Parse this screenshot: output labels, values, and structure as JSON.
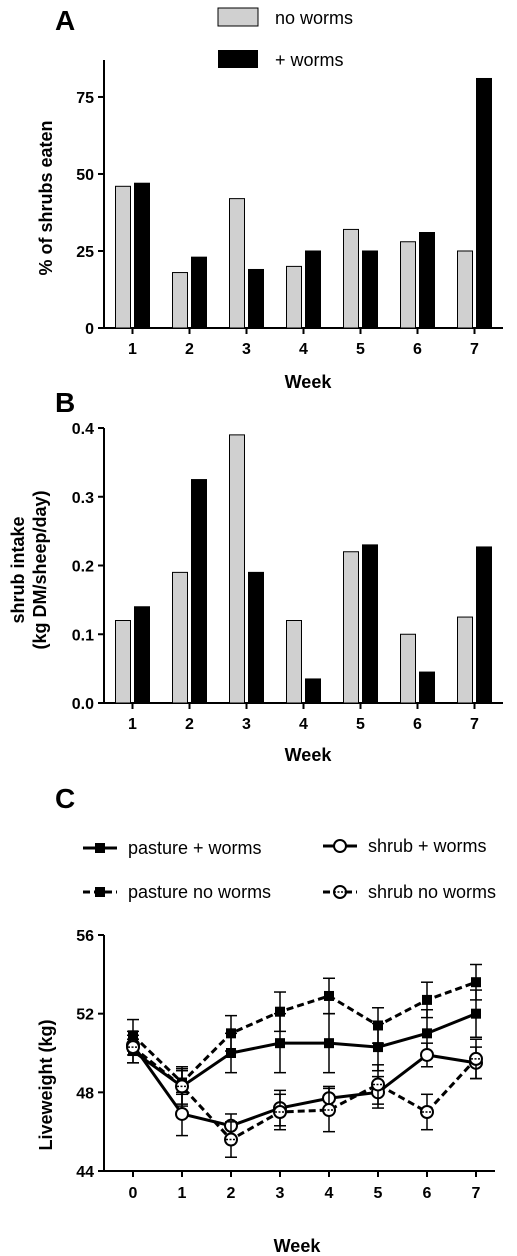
{
  "colors": {
    "no_worms_fill": "#d0d0d0",
    "worms_fill": "#000000",
    "axis": "#000000"
  },
  "chart_data": [
    {
      "panel": "A",
      "type": "bar",
      "xlabel": "Week",
      "ylabel": "% of shrubs eaten",
      "ylim": [
        0,
        87
      ],
      "yticks": [
        "0",
        "25",
        "50",
        "75"
      ],
      "categories": [
        "1",
        "2",
        "3",
        "4",
        "5",
        "6",
        "7"
      ],
      "legend": "top-center",
      "series": [
        {
          "name": "no worms",
          "color": "#d0d0d0",
          "values": [
            46,
            18,
            42,
            20,
            32,
            28,
            25
          ]
        },
        {
          "name": "+ worms",
          "color": "#000000",
          "values": [
            47,
            23,
            19,
            25,
            25,
            31,
            81
          ]
        }
      ]
    },
    {
      "panel": "B",
      "type": "bar",
      "xlabel": "Week",
      "ylabel_line1": "shrub intake",
      "ylabel_line2": "(kg DM/sheep/day)",
      "ylim": [
        0,
        0.4
      ],
      "yticks": [
        "0.0",
        "0.1",
        "0.2",
        "0.3",
        "0.4"
      ],
      "categories": [
        "1",
        "2",
        "3",
        "4",
        "5",
        "6",
        "7"
      ],
      "series": [
        {
          "name": "no worms",
          "color": "#d0d0d0",
          "values": [
            0.12,
            0.19,
            0.39,
            0.12,
            0.22,
            0.1,
            0.125
          ]
        },
        {
          "name": "+ worms",
          "color": "#000000",
          "values": [
            0.14,
            0.325,
            0.19,
            0.035,
            0.23,
            0.045,
            0.227
          ]
        }
      ]
    },
    {
      "panel": "C",
      "type": "line",
      "xlabel": "Week",
      "ylabel": "Liveweight  (kg)",
      "ylim": [
        44,
        56
      ],
      "yticks": [
        "44",
        "48",
        "52",
        "56"
      ],
      "x": [
        "0",
        "1",
        "2",
        "3",
        "4",
        "5",
        "6",
        "7"
      ],
      "legend": "top",
      "series": [
        {
          "name": "pasture + worms",
          "marker": "square",
          "dashed": false,
          "values": [
            50.1,
            48.3,
            50.0,
            50.5,
            50.5,
            50.3,
            51.0,
            52.0
          ],
          "err": [
            0.6,
            0.9,
            1.0,
            1.5,
            1.5,
            1.2,
            1.2,
            1.2
          ]
        },
        {
          "name": "pasture no worms",
          "marker": "square",
          "dashed": true,
          "values": [
            50.9,
            48.5,
            51.0,
            52.1,
            52.9,
            51.4,
            52.7,
            53.6
          ],
          "err": [
            0.8,
            0.6,
            0.9,
            1.0,
            0.9,
            0.9,
            0.9,
            0.9
          ]
        },
        {
          "name": "shrub + worms",
          "marker": "circle",
          "dashed": false,
          "values": [
            50.4,
            46.9,
            46.3,
            47.2,
            47.7,
            48.0,
            49.9,
            49.5
          ],
          "err": [
            0.5,
            1.1,
            0.6,
            0.9,
            0.6,
            0.8,
            0.6,
            0.8
          ]
        },
        {
          "name": "shrub no worms",
          "marker": "circle-dashed",
          "dashed": true,
          "values": [
            50.3,
            48.3,
            45.6,
            47.0,
            47.1,
            48.4,
            47.0,
            49.7
          ],
          "err": [
            0.8,
            1.0,
            0.9,
            0.9,
            1.1,
            1.0,
            0.9,
            1.0
          ]
        }
      ]
    }
  ]
}
